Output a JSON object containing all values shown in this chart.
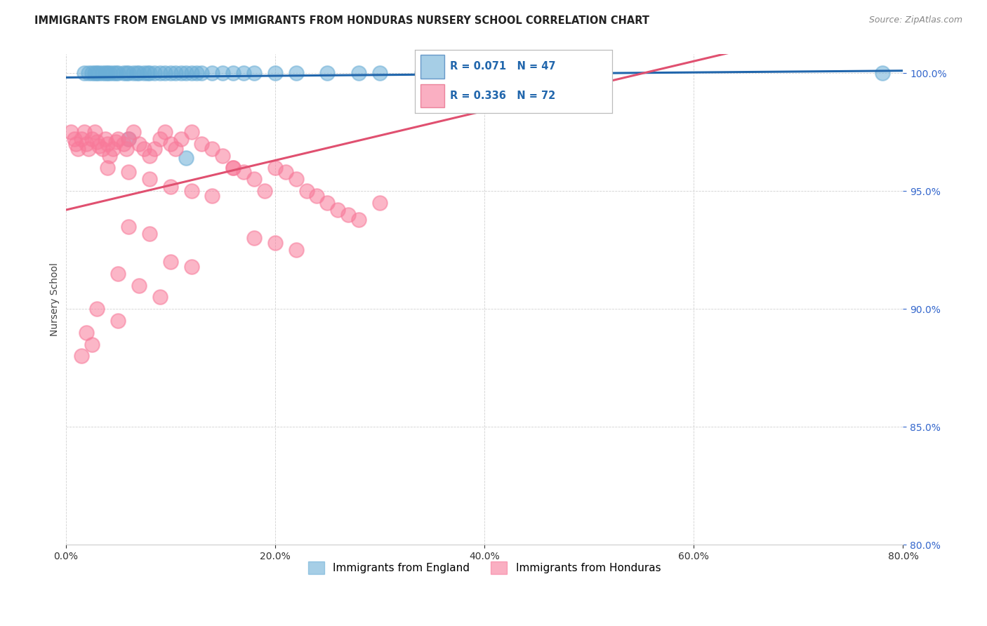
{
  "title": "IMMIGRANTS FROM ENGLAND VS IMMIGRANTS FROM HONDURAS NURSERY SCHOOL CORRELATION CHART",
  "source": "Source: ZipAtlas.com",
  "ylabel": "Nursery School",
  "legend_england": "Immigrants from England",
  "legend_honduras": "Immigrants from Honduras",
  "R_england": 0.071,
  "N_england": 47,
  "R_honduras": 0.336,
  "N_honduras": 72,
  "xmin": 0.0,
  "xmax": 0.8,
  "ymin": 0.8,
  "ymax": 1.008,
  "color_england": "#6baed6",
  "color_honduras": "#f87a9a",
  "color_trend_england": "#2166ac",
  "color_trend_honduras": "#e05070",
  "eng_x": [
    0.018,
    0.022,
    0.025,
    0.028,
    0.03,
    0.032,
    0.035,
    0.038,
    0.04,
    0.042,
    0.045,
    0.048,
    0.05,
    0.055,
    0.058,
    0.06,
    0.065,
    0.068,
    0.07,
    0.075,
    0.078,
    0.08,
    0.085,
    0.09,
    0.095,
    0.1,
    0.105,
    0.11,
    0.115,
    0.12,
    0.125,
    0.13,
    0.14,
    0.15,
    0.16,
    0.17,
    0.18,
    0.2,
    0.22,
    0.25,
    0.28,
    0.3,
    0.34,
    0.38,
    0.115,
    0.78,
    0.06
  ],
  "eng_y": [
    1.0,
    1.0,
    1.0,
    1.0,
    1.0,
    1.0,
    1.0,
    1.0,
    1.0,
    1.0,
    1.0,
    1.0,
    1.0,
    1.0,
    1.0,
    1.0,
    1.0,
    1.0,
    1.0,
    1.0,
    1.0,
    1.0,
    1.0,
    1.0,
    1.0,
    1.0,
    1.0,
    1.0,
    1.0,
    1.0,
    1.0,
    1.0,
    1.0,
    1.0,
    1.0,
    1.0,
    1.0,
    1.0,
    1.0,
    1.0,
    1.0,
    1.0,
    1.0,
    1.0,
    0.964,
    1.0,
    0.972
  ],
  "hon_x": [
    0.005,
    0.008,
    0.01,
    0.012,
    0.015,
    0.018,
    0.02,
    0.022,
    0.025,
    0.028,
    0.03,
    0.032,
    0.035,
    0.038,
    0.04,
    0.042,
    0.045,
    0.048,
    0.05,
    0.055,
    0.058,
    0.06,
    0.065,
    0.07,
    0.075,
    0.08,
    0.085,
    0.09,
    0.095,
    0.1,
    0.105,
    0.11,
    0.12,
    0.13,
    0.14,
    0.15,
    0.16,
    0.17,
    0.18,
    0.19,
    0.2,
    0.21,
    0.22,
    0.23,
    0.24,
    0.25,
    0.26,
    0.27,
    0.28,
    0.3,
    0.04,
    0.06,
    0.08,
    0.1,
    0.12,
    0.14,
    0.16,
    0.18,
    0.2,
    0.22,
    0.06,
    0.08,
    0.1,
    0.12,
    0.05,
    0.07,
    0.09,
    0.03,
    0.05,
    0.02,
    0.025,
    0.015
  ],
  "hon_y": [
    0.975,
    0.972,
    0.97,
    0.968,
    0.972,
    0.975,
    0.97,
    0.968,
    0.972,
    0.975,
    0.971,
    0.969,
    0.968,
    0.972,
    0.97,
    0.965,
    0.968,
    0.971,
    0.972,
    0.97,
    0.968,
    0.972,
    0.975,
    0.97,
    0.968,
    0.965,
    0.968,
    0.972,
    0.975,
    0.97,
    0.968,
    0.972,
    0.975,
    0.97,
    0.968,
    0.965,
    0.96,
    0.958,
    0.955,
    0.95,
    0.96,
    0.958,
    0.955,
    0.95,
    0.948,
    0.945,
    0.942,
    0.94,
    0.938,
    0.945,
    0.96,
    0.958,
    0.955,
    0.952,
    0.95,
    0.948,
    0.96,
    0.93,
    0.928,
    0.925,
    0.935,
    0.932,
    0.92,
    0.918,
    0.915,
    0.91,
    0.905,
    0.9,
    0.895,
    0.89,
    0.885,
    0.88
  ]
}
